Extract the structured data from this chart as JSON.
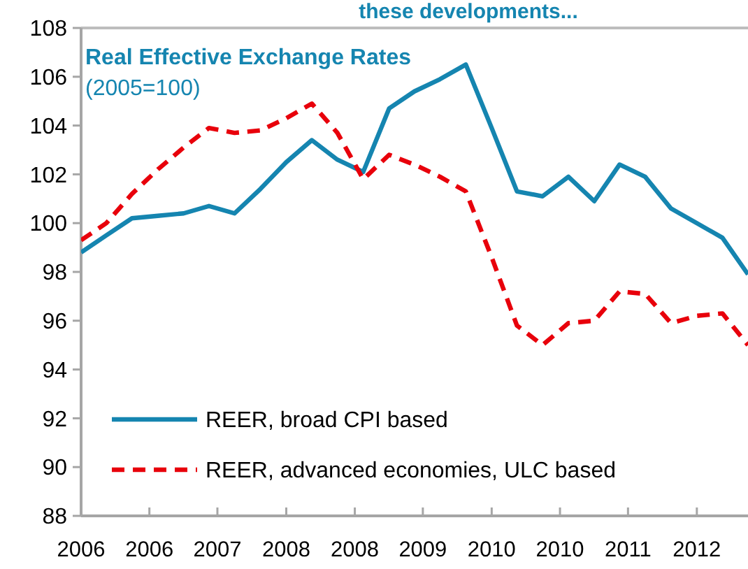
{
  "chart_data": {
    "type": "line",
    "title": "these developments...",
    "subtitle": "Real Effective Exchange Rates",
    "annotations": [
      "(2005=100)"
    ],
    "x": [
      "2006-01",
      "2006-04",
      "2006-07",
      "2006-10",
      "2007-01",
      "2007-04",
      "2007-07",
      "2007-10",
      "2008-01",
      "2008-04",
      "2008-07",
      "2008-10",
      "2009-01",
      "2009-04",
      "2009-07",
      "2009-10",
      "2010-01",
      "2010-04",
      "2010-07",
      "2010-10",
      "2011-01",
      "2011-04",
      "2011-07",
      "2011-10",
      "2012-01",
      "2012-04",
      "2012-07"
    ],
    "series": [
      {
        "name": "REER, broad CPI based",
        "color": "#1585b0",
        "line_style": "solid",
        "values": [
          98.8,
          99.5,
          100.2,
          100.3,
          100.4,
          100.7,
          100.4,
          101.4,
          102.5,
          103.4,
          102.6,
          102.1,
          104.7,
          105.4,
          105.9,
          106.5,
          103.9,
          101.3,
          101.1,
          101.9,
          100.9,
          102.4,
          101.9,
          100.6,
          100.0,
          99.4,
          97.9
        ]
      },
      {
        "name": "REER, advanced economies, ULC based",
        "color": "#e8000b",
        "line_style": "dashed",
        "values": [
          99.3,
          100.0,
          101.2,
          102.2,
          103.1,
          103.9,
          103.7,
          103.8,
          104.3,
          104.9,
          103.7,
          101.8,
          102.8,
          102.4,
          101.9,
          101.3,
          98.6,
          95.8,
          95.0,
          95.9,
          96.0,
          97.2,
          97.1,
          95.9,
          96.2,
          96.3,
          95.0
        ]
      }
    ],
    "xlim": [
      "2006-01",
      "2012-07"
    ],
    "xticks": [
      {
        "value": "2006-01",
        "label": "2006"
      },
      {
        "value": "2006-09",
        "label": "2006"
      },
      {
        "value": "2007-05",
        "label": "2007"
      },
      {
        "value": "2008-01",
        "label": "2008"
      },
      {
        "value": "2008-09",
        "label": "2008"
      },
      {
        "value": "2009-05",
        "label": "2009"
      },
      {
        "value": "2010-01",
        "label": "2010"
      },
      {
        "value": "2010-09",
        "label": "2010"
      },
      {
        "value": "2011-05",
        "label": "2011"
      },
      {
        "value": "2012-01",
        "label": "2012"
      }
    ],
    "ylim": [
      88,
      108
    ],
    "yticks": [
      88,
      90,
      92,
      94,
      96,
      98,
      100,
      102,
      104,
      106,
      108
    ],
    "grid": false,
    "legend": "bottom left"
  }
}
